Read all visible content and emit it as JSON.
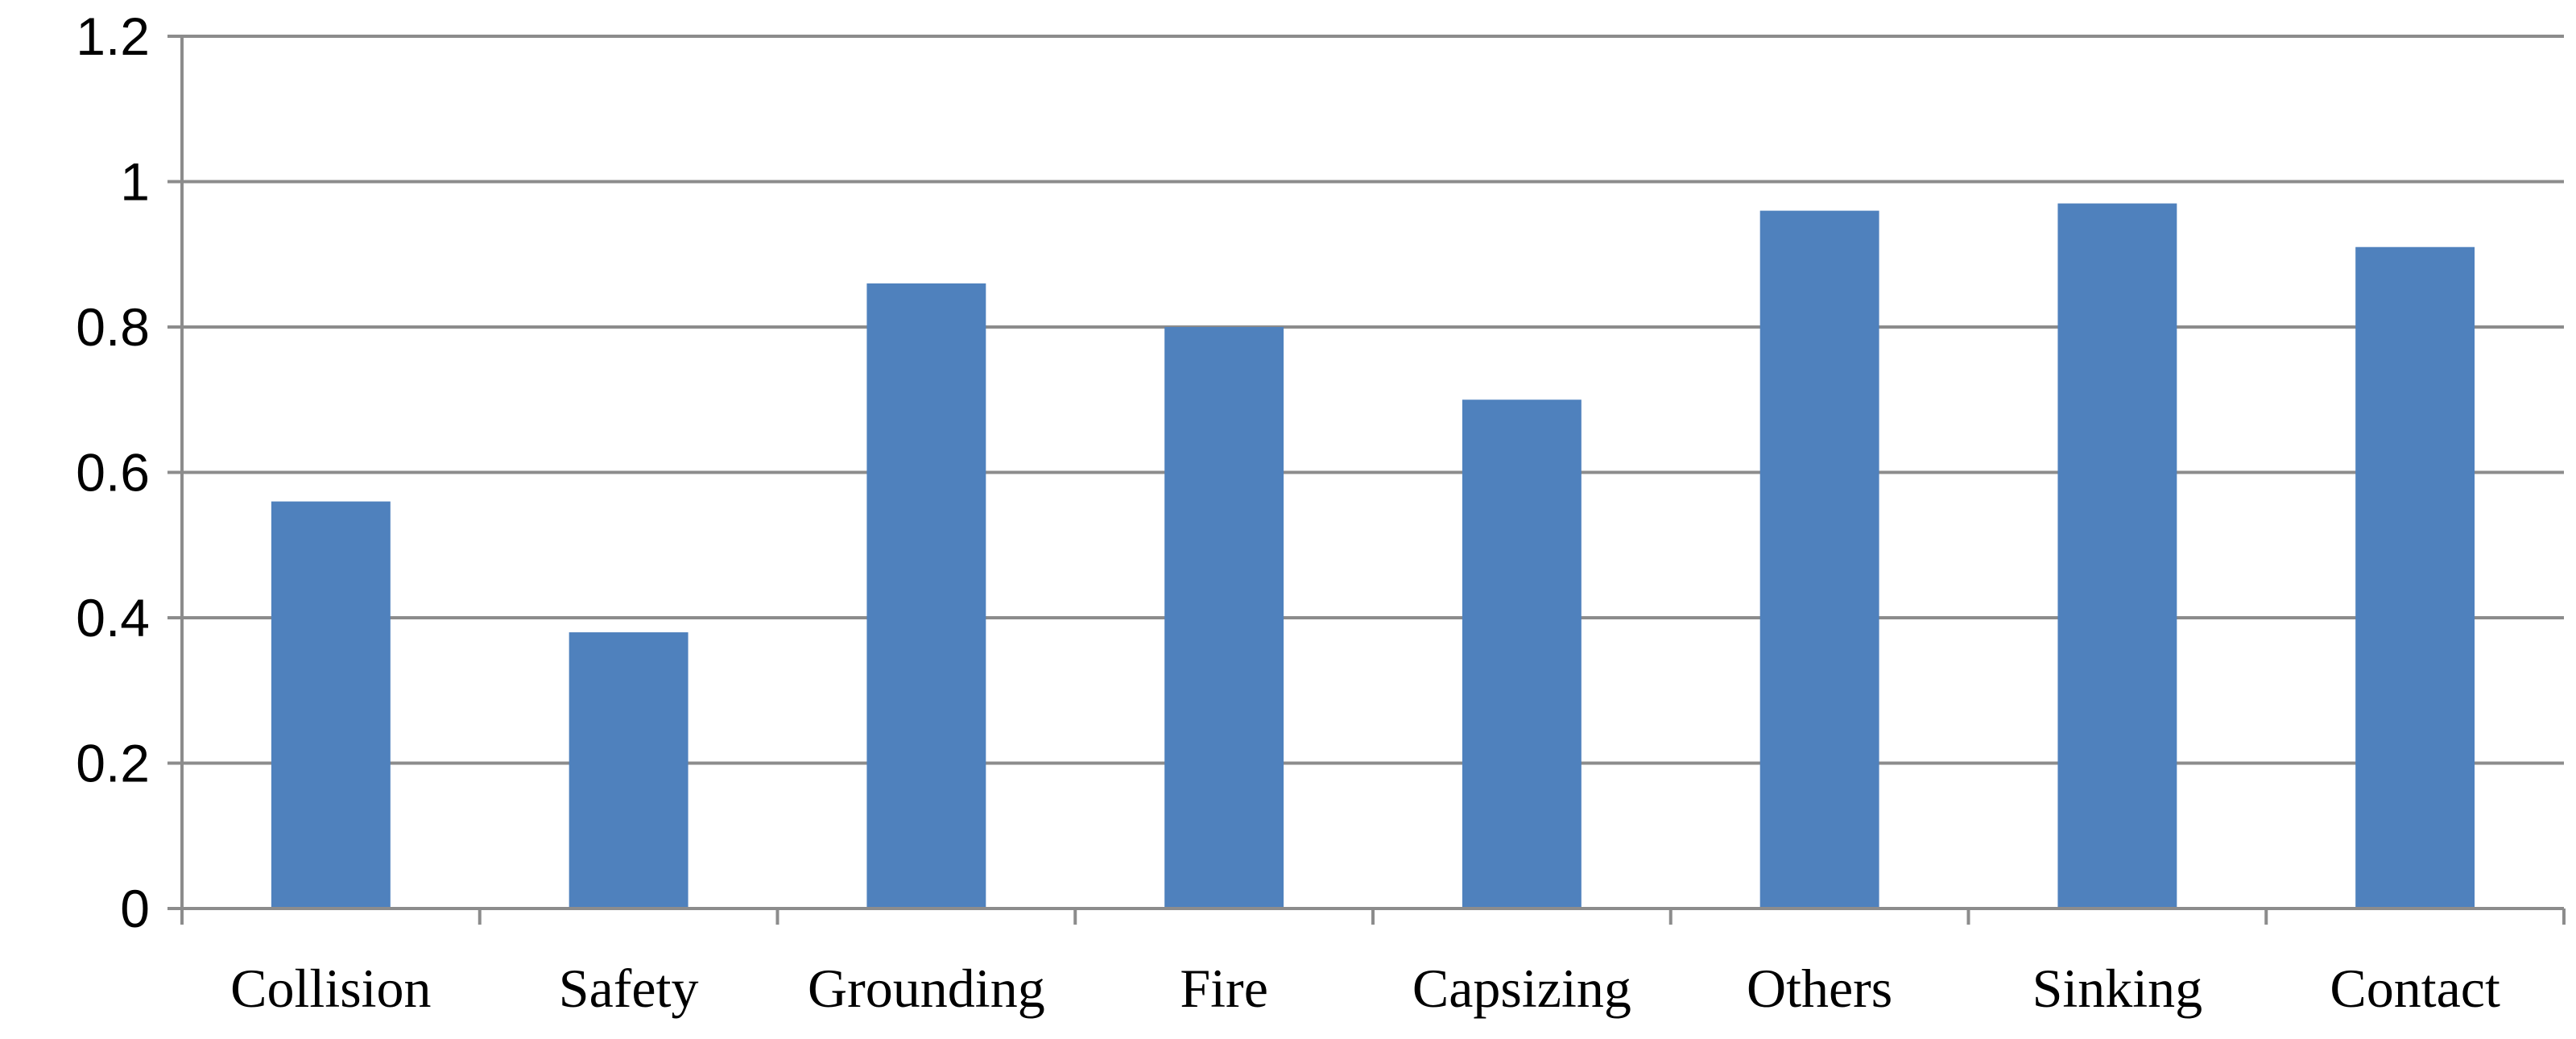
{
  "chart_data": {
    "type": "bar",
    "categories": [
      "Collision",
      "Safety",
      "Grounding",
      "Fire",
      "Capsizing",
      "Others",
      "Sinking",
      "Contact"
    ],
    "values": [
      0.56,
      0.38,
      0.86,
      0.8,
      0.7,
      0.96,
      0.97,
      0.91
    ],
    "title": "",
    "xlabel": "",
    "ylabel": "",
    "ylim": [
      0,
      1.2
    ],
    "yticks": [
      "0",
      "0.2",
      "0.4",
      "0.6",
      "0.8",
      "1",
      "1.2"
    ],
    "grid": true,
    "legend": "none",
    "colors": {
      "bar": "#4f81bd",
      "grid": "#8c8c8c",
      "axis": "#8c8c8c"
    }
  }
}
